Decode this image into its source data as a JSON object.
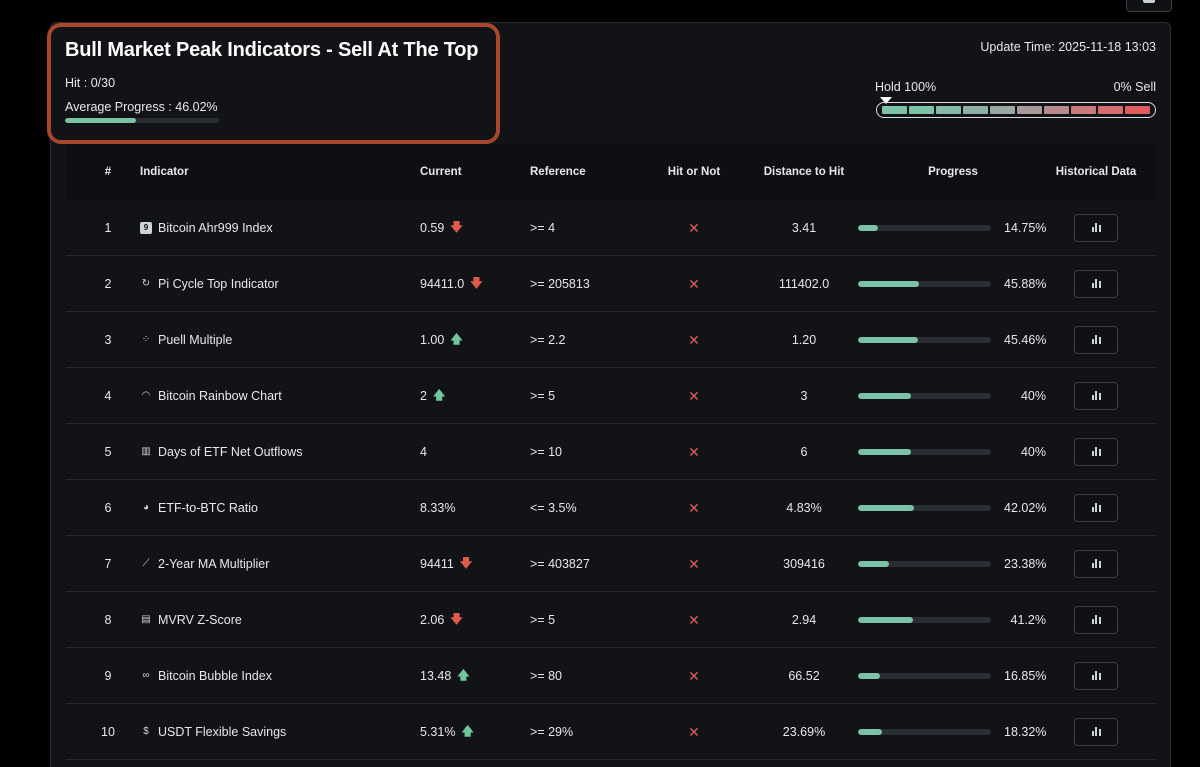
{
  "header": {
    "title": "Bull Market Peak Indicators - Sell At The Top",
    "hit": "Hit : 0/30",
    "average_progress_label": "Average Progress : 46.02%",
    "average_progress_value": 46.02,
    "update_time": "Update Time: 2025-11-18 13:03"
  },
  "scale": {
    "left_label": "Hold 100%",
    "right_label": "0% Sell",
    "segments": [
      "#7cc2a6",
      "#7cc2a6",
      "#86b9a6",
      "#8fb0a5",
      "#9aa8a4",
      "#a89a9b",
      "#b88a8e",
      "#c97a7f",
      "#d56c70",
      "#e05a5e"
    ]
  },
  "columns": {
    "num": "#",
    "indicator": "Indicator",
    "current": "Current",
    "reference": "Reference",
    "hit": "Hit or Not",
    "distance": "Distance to Hit",
    "progress": "Progress",
    "historical": "Historical Data"
  },
  "rows": [
    {
      "num": "1",
      "icon": "number-box-icon",
      "icon_glyph": "9",
      "name": "Bitcoin Ahr999 Index",
      "current": "0.59",
      "trend": "down",
      "reference": ">= 4",
      "hit": "✕",
      "distance": "3.41",
      "progress": 14.75,
      "progress_label": "14.75%"
    },
    {
      "num": "2",
      "icon": "cycle-icon",
      "icon_glyph": "↻",
      "name": "Pi Cycle Top Indicator",
      "current": "94411.0",
      "trend": "down",
      "reference": ">= 205813",
      "hit": "✕",
      "distance": "111402.0",
      "progress": 45.88,
      "progress_label": "45.88%"
    },
    {
      "num": "3",
      "icon": "scatter-icon",
      "icon_glyph": "⁘",
      "name": "Puell Multiple",
      "current": "1.00",
      "trend": "up",
      "reference": ">= 2.2",
      "hit": "✕",
      "distance": "1.20",
      "progress": 45.46,
      "progress_label": "45.46%"
    },
    {
      "num": "4",
      "icon": "rainbow-icon",
      "icon_glyph": "◠",
      "name": "Bitcoin Rainbow Chart",
      "current": "2",
      "trend": "up",
      "reference": ">= 5",
      "hit": "✕",
      "distance": "3",
      "progress": 40,
      "progress_label": "40%"
    },
    {
      "num": "5",
      "icon": "bar-chart-icon",
      "icon_glyph": "▥",
      "name": "Days of ETF Net Outflows",
      "current": "4",
      "trend": "",
      "reference": ">= 10",
      "hit": "✕",
      "distance": "6",
      "progress": 40,
      "progress_label": "40%"
    },
    {
      "num": "6",
      "icon": "pie-chart-icon",
      "icon_glyph": "◕",
      "name": "ETF-to-BTC Ratio",
      "current": "8.33%",
      "trend": "",
      "reference": "<= 3.5%",
      "hit": "✕",
      "distance": "4.83%",
      "progress": 42.02,
      "progress_label": "42.02%"
    },
    {
      "num": "7",
      "icon": "line-chart-icon",
      "icon_glyph": "⟋",
      "name": "2-Year MA Multiplier",
      "current": "94411",
      "trend": "down",
      "reference": ">= 403827",
      "hit": "✕",
      "distance": "309416",
      "progress": 23.38,
      "progress_label": "23.38%"
    },
    {
      "num": "8",
      "icon": "clipboard-icon",
      "icon_glyph": "▤",
      "name": "MVRV Z-Score",
      "current": "2.06",
      "trend": "down",
      "reference": ">= 5",
      "hit": "✕",
      "distance": "2.94",
      "progress": 41.2,
      "progress_label": "41.2%"
    },
    {
      "num": "9",
      "icon": "bubble-icon",
      "icon_glyph": "∞",
      "name": "Bitcoin Bubble Index",
      "current": "13.48",
      "trend": "up",
      "reference": ">= 80",
      "hit": "✕",
      "distance": "66.52",
      "progress": 16.85,
      "progress_label": "16.85%"
    },
    {
      "num": "10",
      "icon": "dollar-icon",
      "icon_glyph": "$",
      "name": "USDT Flexible Savings",
      "current": "5.31%",
      "trend": "up",
      "reference": ">= 29%",
      "hit": "✕",
      "distance": "23.69%",
      "progress": 18.32,
      "progress_label": "18.32%"
    }
  ]
}
